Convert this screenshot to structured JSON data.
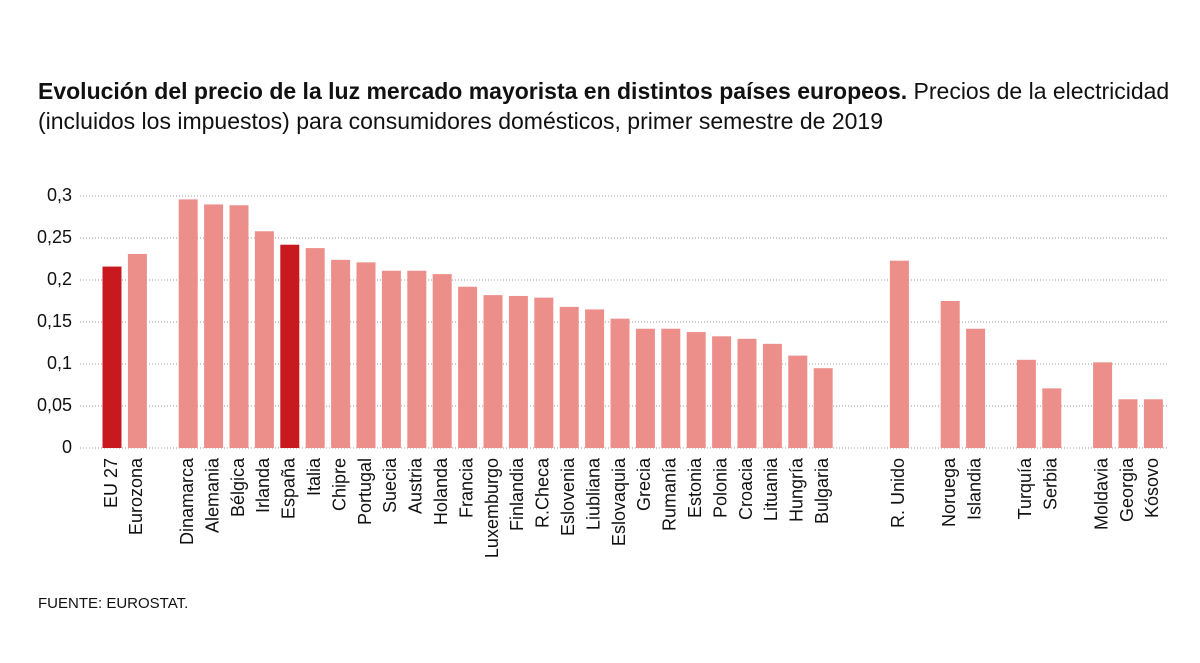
{
  "chart_data": {
    "type": "bar",
    "title": "Evolución del precio de la luz mercado mayorista en distintos países europeos.",
    "subtitle": "Precios de la electricidad (incluidos los impuestos) para consumidores domésticos, primer semestre de 2019",
    "source": "FUENTE: EUROSTAT.",
    "categories": [
      "EU 27",
      "Eurozona",
      null,
      "Dinamarca",
      "Alemania",
      "Bélgica",
      "Irlanda",
      "España",
      "Italia",
      "Chipre",
      "Portugal",
      "Suecia",
      "Austria",
      "Holanda",
      "Francia",
      "Luxemburgo",
      "Finlandia",
      "R.Checa",
      "Eslovenia",
      "Liubliana",
      "Eslovaquia",
      "Grecia",
      "Rumanía",
      "Estonia",
      "Polonia",
      "Croacia",
      "Lituania",
      "Hungría",
      "Bulgaria",
      null,
      null,
      "R. Unido",
      null,
      "Noruega",
      "Islandia",
      null,
      "Turquía",
      "Serbia",
      null,
      "Moldavia",
      "Georgia",
      "Kósovo"
    ],
    "values": [
      0.216,
      0.231,
      null,
      0.296,
      0.29,
      0.289,
      0.258,
      0.242,
      0.238,
      0.224,
      0.221,
      0.211,
      0.211,
      0.207,
      0.192,
      0.182,
      0.181,
      0.179,
      0.168,
      0.165,
      0.154,
      0.142,
      0.142,
      0.138,
      0.133,
      0.13,
      0.124,
      0.11,
      0.095,
      null,
      null,
      0.223,
      null,
      0.175,
      0.142,
      null,
      0.105,
      0.071,
      null,
      0.102,
      0.058,
      0.058
    ],
    "colors": [
      "#c8191f",
      "#ec8f8b",
      null,
      "#ec8f8b",
      "#ec8f8b",
      "#ec8f8b",
      "#ec8f8b",
      "#c8191f",
      "#ec8f8b",
      "#ec8f8b",
      "#ec8f8b",
      "#ec8f8b",
      "#ec8f8b",
      "#ec8f8b",
      "#ec8f8b",
      "#ec8f8b",
      "#ec8f8b",
      "#ec8f8b",
      "#ec8f8b",
      "#ec8f8b",
      "#ec8f8b",
      "#ec8f8b",
      "#ec8f8b",
      "#ec8f8b",
      "#ec8f8b",
      "#ec8f8b",
      "#ec8f8b",
      "#ec8f8b",
      "#ec8f8b",
      null,
      null,
      "#ec8f8b",
      null,
      "#ec8f8b",
      "#ec8f8b",
      null,
      "#ec8f8b",
      "#ec8f8b",
      null,
      "#ec8f8b",
      "#ec8f8b",
      "#ec8f8b"
    ],
    "ylim": [
      0,
      0.3
    ],
    "yticks": [
      0,
      {
        "value": 0.05,
        "label": "0,05"
      },
      {
        "value": 0.1,
        "label": "0,1"
      },
      {
        "value": 0.15,
        "label": "0,15"
      },
      {
        "value": 0.2,
        "label": "0,2"
      },
      {
        "value": 0.25,
        "label": "0,25"
      },
      {
        "value": 0.3,
        "label": "0,3"
      }
    ],
    "grid": true
  }
}
